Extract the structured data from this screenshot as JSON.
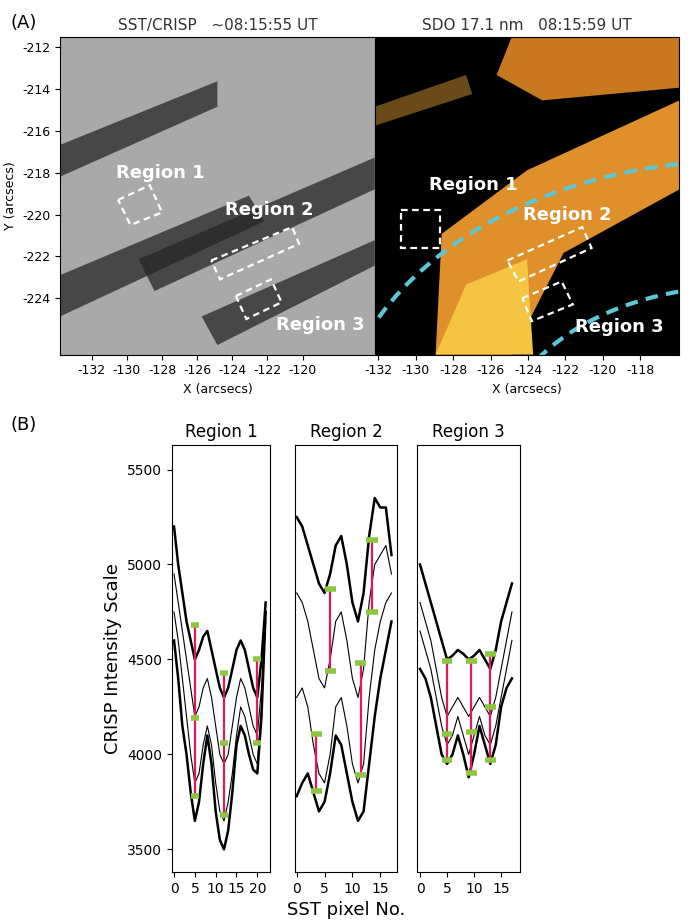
{
  "panel_labels": [
    "(A)",
    "(B)"
  ],
  "images": [
    {
      "title": "SST/CRISP   ~08:15:55 UT",
      "xlabel": "X (arcsecs)",
      "ylabel": "Y (arcsecs)",
      "xlim": [
        -133.8,
        -115.9
      ],
      "ylim": [
        -226.7,
        -211.5
      ],
      "xticks": [
        -132,
        -130,
        -128,
        -126,
        -124,
        -122,
        -120
      ],
      "yticks": [
        -224,
        -222,
        -220,
        -218,
        -216,
        -214,
        -212
      ],
      "regions": [
        {
          "label": "Region 1",
          "corners": [
            [
              -130.5,
              -219.3
            ],
            [
              -128.7,
              -218.6
            ],
            [
              -128.0,
              -219.9
            ],
            [
              -129.8,
              -220.5
            ]
          ],
          "label_xy": [
            -128.1,
            -218.0
          ]
        },
        {
          "label": "Region 2",
          "corners": [
            [
              -125.2,
              -222.2
            ],
            [
              -120.6,
              -220.6
            ],
            [
              -120.2,
              -221.4
            ],
            [
              -124.7,
              -223.1
            ]
          ],
          "label_xy": [
            -121.9,
            -219.8
          ]
        },
        {
          "label": "Region 3",
          "corners": [
            [
              -123.8,
              -223.9
            ],
            [
              -121.8,
              -223.1
            ],
            [
              -121.2,
              -224.2
            ],
            [
              -123.2,
              -225.0
            ]
          ],
          "label_xy": [
            -119.0,
            -225.3
          ]
        }
      ]
    },
    {
      "title": "SDO 17.1 nm   08:15:59 UT",
      "xlabel": "X (arcsecs)",
      "xlim": [
        -132.2,
        -115.9
      ],
      "ylim": [
        -226.7,
        -211.5
      ],
      "xticks": [
        -132,
        -130,
        -128,
        -126,
        -124,
        -122,
        -120,
        -118
      ],
      "tick_labels": "x",
      "regions": [
        {
          "label": "Region 1",
          "corners": [
            [
              -130.8,
              -219.8
            ],
            [
              -128.7,
              -219.8
            ],
            [
              -128.7,
              -221.6
            ],
            [
              -130.8,
              -221.6
            ]
          ],
          "label_xy": [
            -126.9,
            -218.6
          ]
        },
        {
          "label": "Region 2",
          "corners": [
            [
              -125.1,
              -222.2
            ],
            [
              -121.1,
              -220.6
            ],
            [
              -120.6,
              -221.6
            ],
            [
              -124.5,
              -223.2
            ]
          ],
          "label_xy": [
            -121.9,
            -220.0
          ]
        },
        {
          "label": "Region 3",
          "corners": [
            [
              -124.3,
              -224.0
            ],
            [
              -122.2,
              -223.2
            ],
            [
              -121.6,
              -224.3
            ],
            [
              -123.8,
              -225.1
            ]
          ],
          "label_xy": [
            -119.1,
            -225.4
          ]
        }
      ]
    }
  ],
  "chart_data": [
    {
      "type": "line",
      "title": "Region 1",
      "ylabel": "CRISP Intensity Scale",
      "color": "#000000",
      "x": [
        0,
        1,
        2,
        3,
        4,
        5,
        6,
        7,
        8,
        9,
        10,
        11,
        12,
        13,
        14,
        15,
        16,
        17,
        18,
        19,
        20,
        21,
        22
      ],
      "xlim": [
        -0.5,
        23
      ],
      "xticks": [
        0,
        5,
        10,
        15,
        20
      ],
      "ylim": [
        3380,
        5630
      ],
      "yticks": [
        3500,
        4000,
        4500,
        5000,
        5500
      ],
      "series": [
        {
          "values": [
            5200,
            5000,
            4850,
            4700,
            4600,
            4500,
            4550,
            4620,
            4650,
            4550,
            4450,
            4350,
            4300,
            4350,
            4450,
            4550,
            4600,
            4550,
            4450,
            4350,
            4300,
            4500,
            4800
          ]
        },
        {
          "values": [
            4950,
            4800,
            4650,
            4500,
            4350,
            4200,
            4250,
            4350,
            4400,
            4300,
            4150,
            4000,
            3950,
            4000,
            4150,
            4300,
            4400,
            4350,
            4250,
            4150,
            4100,
            4350,
            4750
          ]
        },
        {
          "values": [
            4750,
            4600,
            4400,
            4200,
            4000,
            3850,
            3900,
            4050,
            4150,
            4050,
            3850,
            3700,
            3650,
            3750,
            3900,
            4100,
            4250,
            4200,
            4100,
            4000,
            3950,
            4250,
            4700
          ]
        },
        {
          "values": [
            4600,
            4400,
            4150,
            4000,
            3800,
            3650,
            3750,
            3950,
            4100,
            3950,
            3700,
            3550,
            3500,
            3600,
            3800,
            4050,
            4150,
            4100,
            4000,
            3920,
            3900,
            4200,
            4750
          ]
        }
      ],
      "markers": [
        {
          "x": 5,
          "levels": [
            4680,
            4190,
            3780
          ]
        },
        {
          "x": 12,
          "levels": [
            4430,
            4060,
            3680
          ]
        },
        {
          "x": 20,
          "levels": [
            4500,
            4060
          ]
        }
      ]
    },
    {
      "type": "line",
      "title": "Region 2",
      "xlabel": "SST pixel No.",
      "tick_labels": "x",
      "color": "#000000",
      "x": [
        0,
        1,
        2,
        3,
        4,
        5,
        6,
        7,
        8,
        9,
        10,
        11,
        12,
        13,
        14,
        15,
        16,
        17
      ],
      "xlim": [
        -0.3,
        18
      ],
      "xticks": [
        0,
        5,
        10,
        15
      ],
      "ylim": [
        3380,
        5630
      ],
      "series": [
        {
          "values": [
            5250,
            5200,
            5100,
            5000,
            4900,
            4850,
            4950,
            5100,
            5150,
            5000,
            4800,
            4700,
            4850,
            5150,
            5350,
            5300,
            5300,
            5050
          ]
        },
        {
          "values": [
            4850,
            4800,
            4700,
            4550,
            4400,
            4350,
            4500,
            4700,
            4750,
            4600,
            4400,
            4300,
            4450,
            4800,
            5000,
            5050,
            5100,
            4950
          ]
        },
        {
          "values": [
            4300,
            4350,
            4250,
            4050,
            3900,
            3850,
            4000,
            4250,
            4300,
            4150,
            3950,
            3850,
            3950,
            4300,
            4550,
            4700,
            4800,
            4850
          ]
        },
        {
          "values": [
            3780,
            3850,
            3900,
            3800,
            3700,
            3750,
            3900,
            4100,
            4050,
            3900,
            3750,
            3650,
            3700,
            3950,
            4200,
            4400,
            4550,
            4700
          ]
        }
      ],
      "markers": [
        {
          "x": 3.5,
          "levels": [
            4110,
            3810
          ]
        },
        {
          "x": 6,
          "levels": [
            4870,
            4440
          ]
        },
        {
          "x": 11.5,
          "levels": [
            4480,
            3890
          ]
        },
        {
          "x": 13.5,
          "levels": [
            5130,
            4750
          ]
        }
      ]
    },
    {
      "type": "line",
      "title": "Region 3",
      "tick_labels": "x",
      "color": "#000000",
      "x": [
        0,
        1,
        2,
        3,
        4,
        5,
        6,
        7,
        8,
        9,
        10,
        11,
        12,
        13,
        14,
        15,
        16,
        17
      ],
      "xlim": [
        -0.5,
        18.5
      ],
      "xticks": [
        0,
        5,
        10,
        15
      ],
      "ylim": [
        3380,
        5630
      ],
      "series": [
        {
          "values": [
            5000,
            4900,
            4800,
            4700,
            4600,
            4500,
            4520,
            4550,
            4530,
            4500,
            4520,
            4550,
            4500,
            4450,
            4550,
            4700,
            4800,
            4900
          ]
        },
        {
          "values": [
            4800,
            4700,
            4600,
            4450,
            4300,
            4200,
            4250,
            4300,
            4250,
            4200,
            4250,
            4300,
            4250,
            4200,
            4300,
            4450,
            4600,
            4750
          ]
        },
        {
          "values": [
            4650,
            4550,
            4450,
            4300,
            4150,
            4050,
            4100,
            4200,
            4100,
            4000,
            4100,
            4200,
            4100,
            4050,
            4150,
            4300,
            4450,
            4600
          ]
        },
        {
          "values": [
            4450,
            4400,
            4300,
            4150,
            4000,
            3950,
            4000,
            4100,
            4000,
            3880,
            4000,
            4150,
            4050,
            3950,
            4050,
            4250,
            4350,
            4400
          ]
        }
      ],
      "markers": [
        {
          "x": 5,
          "levels": [
            4490,
            4110,
            3970
          ]
        },
        {
          "x": 9.5,
          "levels": [
            4490,
            4120,
            3900
          ]
        },
        {
          "x": 13,
          "levels": [
            4530,
            4250,
            3970
          ]
        }
      ]
    }
  ]
}
